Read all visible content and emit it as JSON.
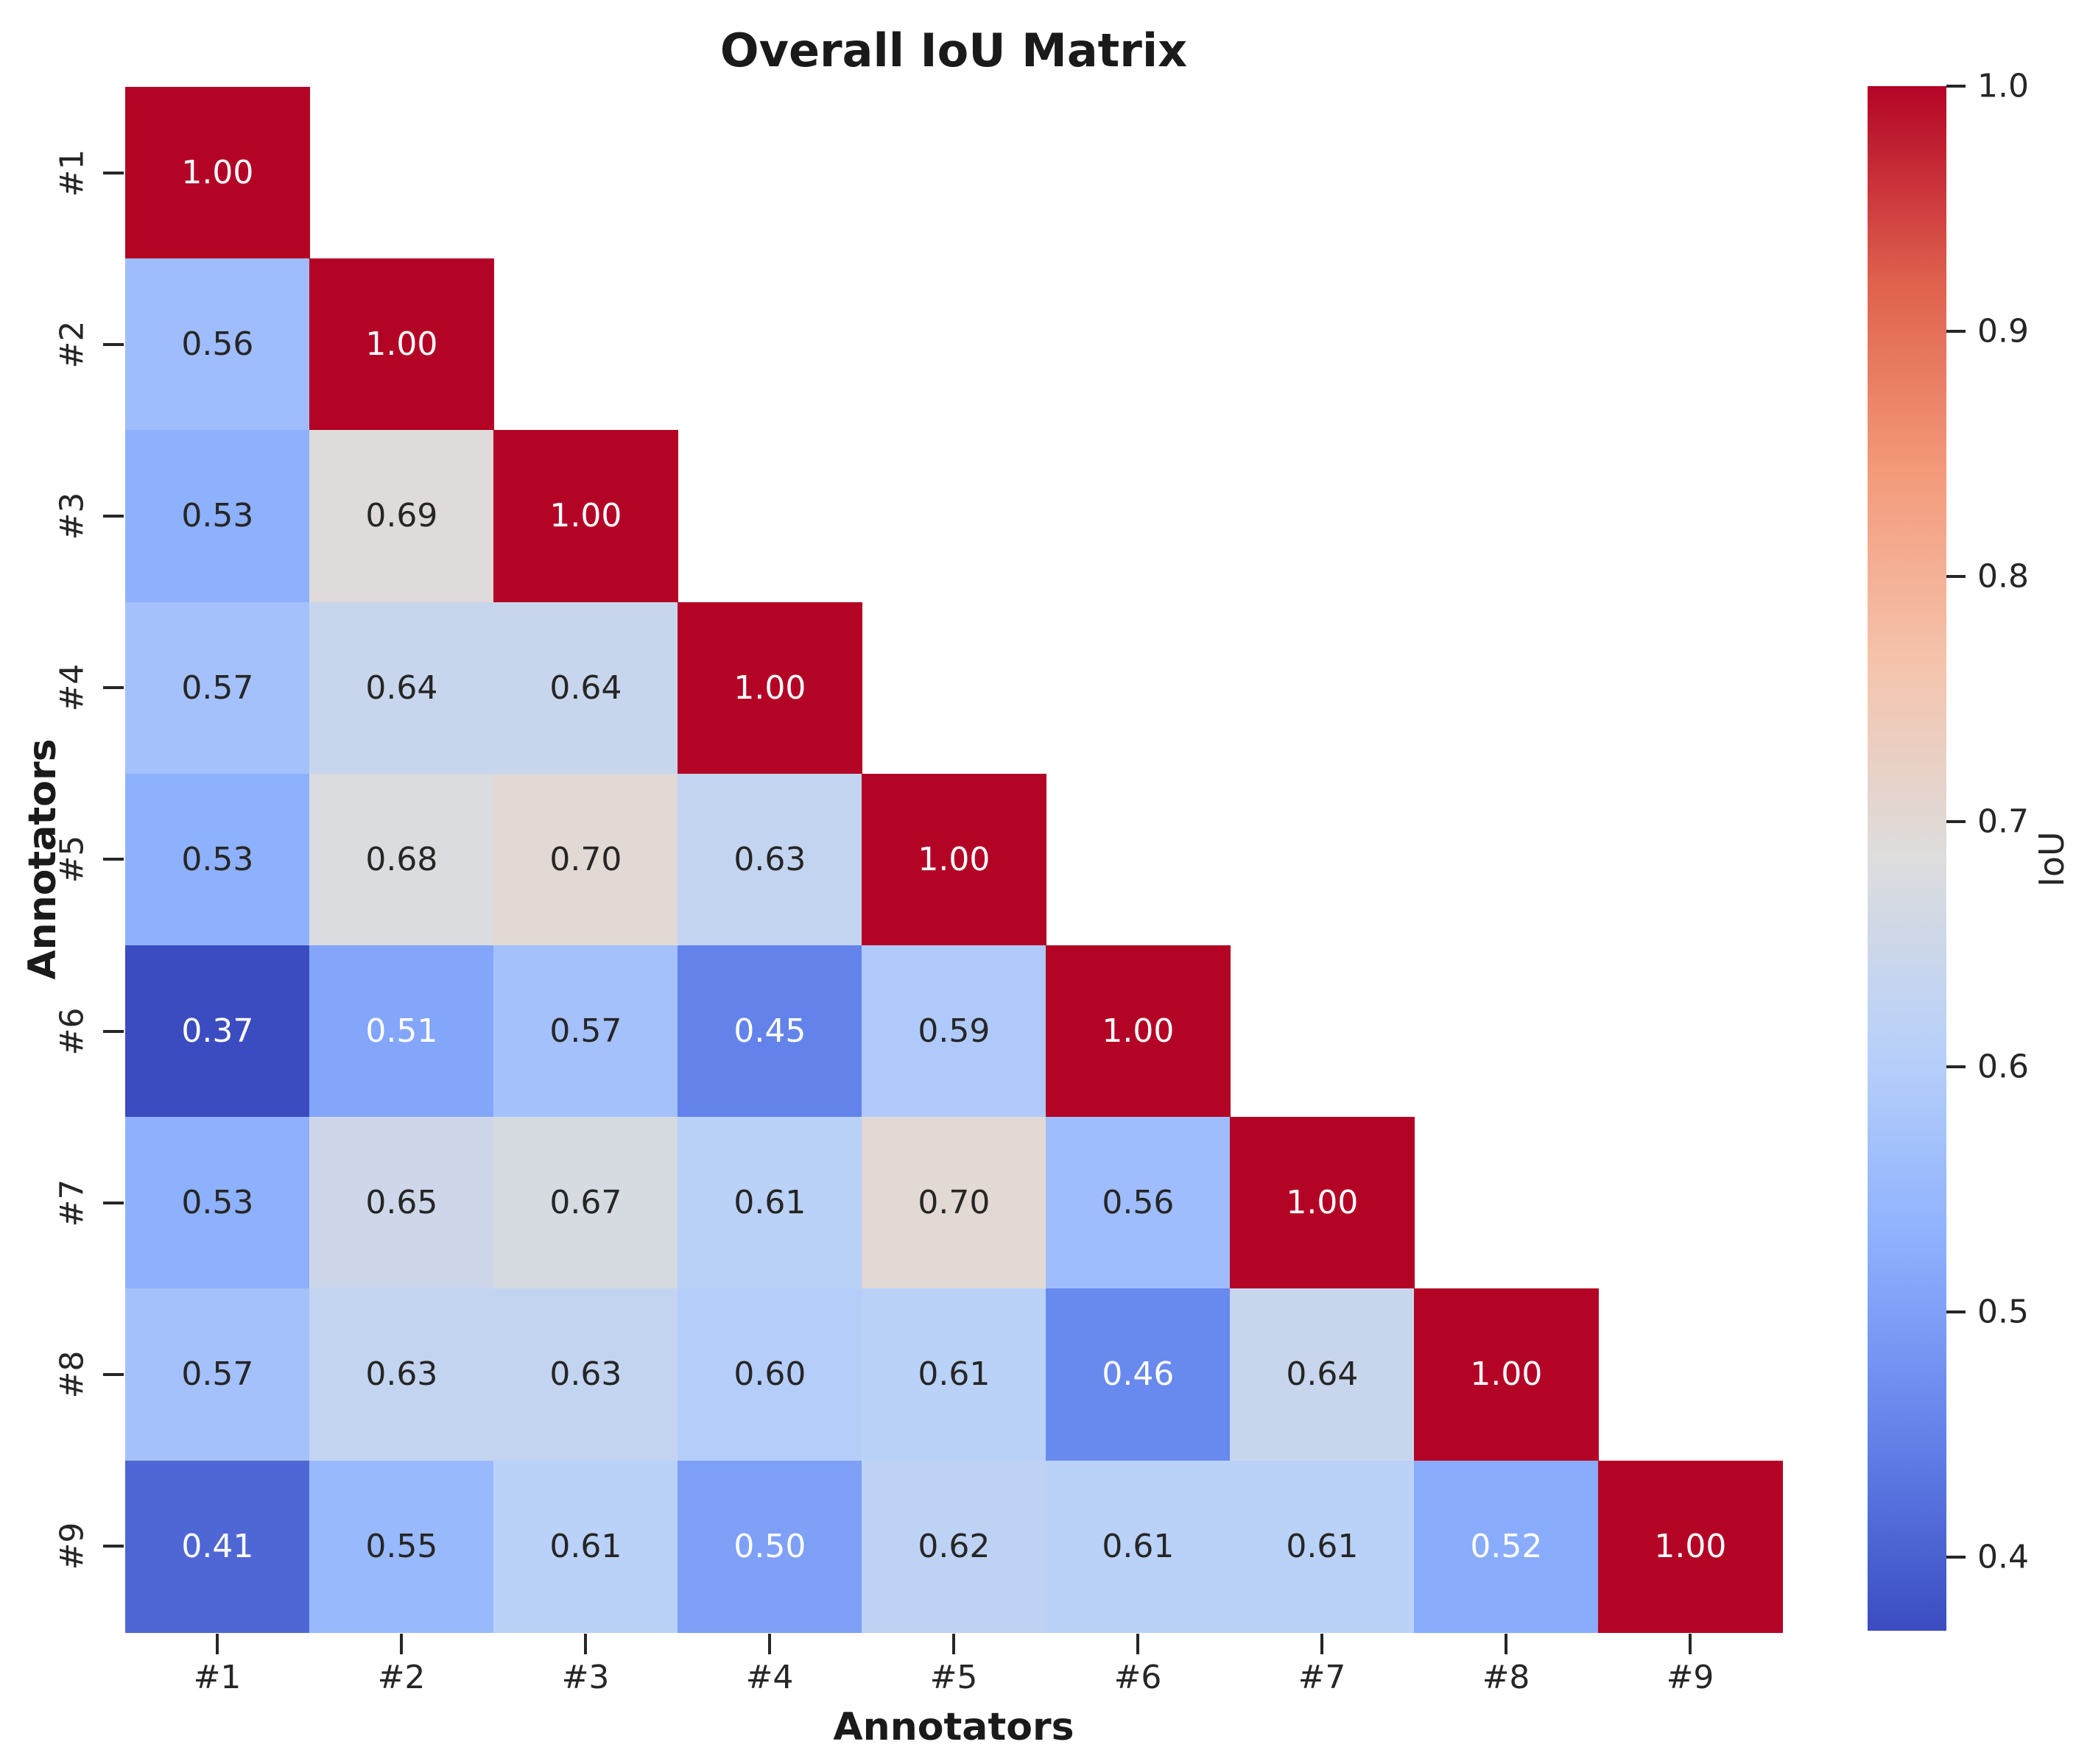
{
  "title": "Overall IoU Matrix",
  "chart_data": {
    "type": "heatmap",
    "title": "Overall IoU Matrix",
    "xlabel": "Annotators",
    "ylabel": "Annotators",
    "categories": [
      "#1",
      "#2",
      "#3",
      "#4",
      "#5",
      "#6",
      "#7",
      "#8",
      "#9"
    ],
    "matrix": [
      [
        1.0,
        null,
        null,
        null,
        null,
        null,
        null,
        null,
        null
      ],
      [
        0.56,
        1.0,
        null,
        null,
        null,
        null,
        null,
        null,
        null
      ],
      [
        0.53,
        0.69,
        1.0,
        null,
        null,
        null,
        null,
        null,
        null
      ],
      [
        0.57,
        0.64,
        0.64,
        1.0,
        null,
        null,
        null,
        null,
        null
      ],
      [
        0.53,
        0.68,
        0.7,
        0.63,
        1.0,
        null,
        null,
        null,
        null
      ],
      [
        0.37,
        0.51,
        0.57,
        0.45,
        0.59,
        1.0,
        null,
        null,
        null
      ],
      [
        0.53,
        0.65,
        0.67,
        0.61,
        0.7,
        0.56,
        1.0,
        null,
        null
      ],
      [
        0.57,
        0.63,
        0.63,
        0.6,
        0.61,
        0.46,
        0.64,
        1.0,
        null
      ],
      [
        0.41,
        0.55,
        0.61,
        0.5,
        0.62,
        0.61,
        0.61,
        0.52,
        1.0
      ]
    ],
    "mask": "upper-triangle-hidden",
    "value_format": "2-decimals",
    "annotation_colors": {
      "dark_text": "#262626",
      "light_text": "#ffffff"
    },
    "colormap": {
      "name": "coolwarm",
      "anchors": [
        "#3b4cc0",
        "#6282ea",
        "#8db0fe",
        "#b8d0f9",
        "#dddddd",
        "#f5c4ad",
        "#f49a7b",
        "#de604d",
        "#b40426"
      ]
    },
    "colorbar": {
      "label": "IoU",
      "vmin": 0.37,
      "vmax": 1.0,
      "tick_labels": [
        "1.0",
        "0.9",
        "0.8",
        "0.7",
        "0.6",
        "0.5",
        "0.4"
      ],
      "tick_values": [
        1.0,
        0.9,
        0.8,
        0.7,
        0.6,
        0.5,
        0.4
      ],
      "position": "right"
    },
    "grid": false,
    "legend": false
  }
}
